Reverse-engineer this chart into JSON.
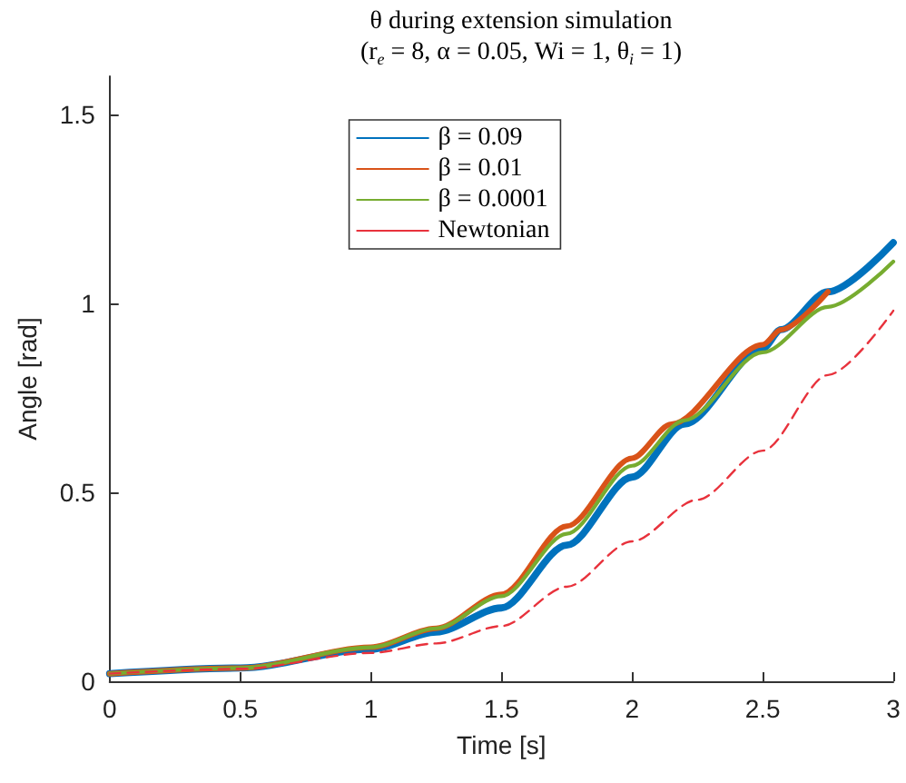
{
  "chart_data": {
    "type": "line",
    "title": "θ during extension simulation",
    "subtitle": "(r$_{e}$ = 8, α = 0.05, Wi = 1, θ$_{i}$ = 1)",
    "xlabel": "Time [s]",
    "ylabel": "Angle [rad]",
    "xlim": [
      0,
      3
    ],
    "xticks": [
      0,
      0.5,
      1,
      1.5,
      2,
      2.5,
      3
    ],
    "ylim": [
      0,
      1.6
    ],
    "yticks": [
      0,
      0.5,
      1,
      1.5
    ],
    "grid": false,
    "legend": "top",
    "marker": "none",
    "line_style": "solid",
    "series": [
      {
        "name": "β = 0.09",
        "color": "#0072bd",
        "x": [
          0,
          0.5,
          1,
          1.25,
          1.5,
          1.75,
          2,
          2.2,
          2.5,
          2.57,
          2.75,
          3
        ],
        "values": [
          0.02,
          0.035,
          0.085,
          0.13,
          0.194,
          0.36,
          0.54,
          0.68,
          0.88,
          0.93,
          1.03,
          1.16
        ]
      },
      {
        "name": "β = 0.01",
        "color": "#d95319",
        "x": [
          0,
          0.5,
          1,
          1.25,
          1.5,
          1.75,
          2,
          2.15,
          2.5,
          2.57,
          2.75
        ],
        "values": [
          0.02,
          0.035,
          0.09,
          0.14,
          0.23,
          0.41,
          0.59,
          0.68,
          0.89,
          0.93,
          1.03
        ]
      },
      {
        "name": "β = 0.0001",
        "color": "#77ac30",
        "x": [
          0,
          0.5,
          1,
          1.25,
          1.5,
          1.75,
          2,
          2.2,
          2.5,
          2.75,
          3
        ],
        "values": [
          0.02,
          0.035,
          0.09,
          0.14,
          0.225,
          0.39,
          0.57,
          0.69,
          0.87,
          0.99,
          1.11
        ]
      },
      {
        "name": "Newtonian",
        "color": "#e8323c",
        "line_style": "dashed",
        "x": [
          0,
          0.5,
          1,
          1.25,
          1.5,
          1.75,
          2,
          2.25,
          2.5,
          2.75,
          3
        ],
        "values": [
          0.02,
          0.033,
          0.075,
          0.1,
          0.146,
          0.25,
          0.37,
          0.48,
          0.61,
          0.81,
          0.98
        ]
      }
    ]
  }
}
